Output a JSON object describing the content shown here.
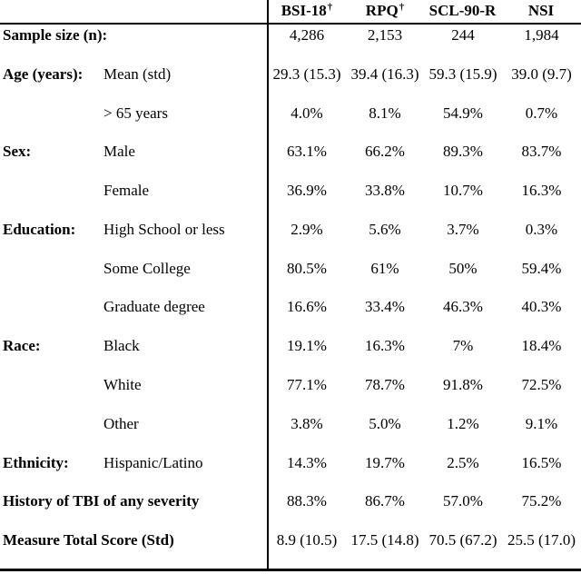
{
  "colors": {
    "text": "#000000",
    "background": "#ffffff",
    "rule": "#000000"
  },
  "table": {
    "header": {
      "columns": [
        {
          "label": "BSI-18",
          "sup": "†"
        },
        {
          "label": "RPQ",
          "sup": "†"
        },
        {
          "label": "SCL-90-R",
          "sup": ""
        },
        {
          "label": "NSI",
          "sup": ""
        }
      ]
    },
    "rows": [
      {
        "category": "Sample size (n):",
        "sublabel": "",
        "values": [
          "4,286",
          "2,153",
          "244",
          "1,984"
        ]
      },
      {
        "category": "Age (years):",
        "sublabel": "Mean (std)",
        "values": [
          "29.3 (15.3)",
          "39.4 (16.3)",
          "59.3 (15.9)",
          "39.0 (9.7)"
        ]
      },
      {
        "category": "",
        "sublabel": "> 65 years",
        "values": [
          "4.0%",
          "8.1%",
          "54.9%",
          "0.7%"
        ]
      },
      {
        "category": "Sex:",
        "sublabel": "Male",
        "values": [
          "63.1%",
          "66.2%",
          "89.3%",
          "83.7%"
        ]
      },
      {
        "category": "",
        "sublabel": "Female",
        "values": [
          "36.9%",
          "33.8%",
          "10.7%",
          "16.3%"
        ]
      },
      {
        "category": "Education:",
        "sublabel": "High School or less",
        "values": [
          "2.9%",
          "5.6%",
          "3.7%",
          "0.3%"
        ]
      },
      {
        "category": "",
        "sublabel": "Some College",
        "values": [
          "80.5%",
          "61%",
          "50%",
          "59.4%"
        ]
      },
      {
        "category": "",
        "sublabel": "Graduate degree",
        "values": [
          "16.6%",
          "33.4%",
          "46.3%",
          "40.3%"
        ]
      },
      {
        "category": "Race:",
        "sublabel": "Black",
        "values": [
          "19.1%",
          "16.3%",
          "7%",
          "18.4%"
        ]
      },
      {
        "category": "",
        "sublabel": "White",
        "values": [
          "77.1%",
          "78.7%",
          "91.8%",
          "72.5%"
        ]
      },
      {
        "category": "",
        "sublabel": "Other",
        "values": [
          "3.8%",
          "5.0%",
          "1.2%",
          "9.1%"
        ]
      },
      {
        "category": "Ethnicity:",
        "sublabel": "Hispanic/Latino",
        "values": [
          "14.3%",
          "19.7%",
          "2.5%",
          "16.5%"
        ]
      },
      {
        "category": "History of TBI of any severity",
        "sublabel": "",
        "values": [
          "88.3%",
          "86.7%",
          "57.0%",
          "75.2%"
        ]
      },
      {
        "category": "Measure Total Score (Std)",
        "sublabel": "",
        "values": [
          "8.9 (10.5)",
          "17.5 (14.8)",
          "70.5 (67.2)",
          "25.5 (17.0)"
        ]
      }
    ]
  }
}
